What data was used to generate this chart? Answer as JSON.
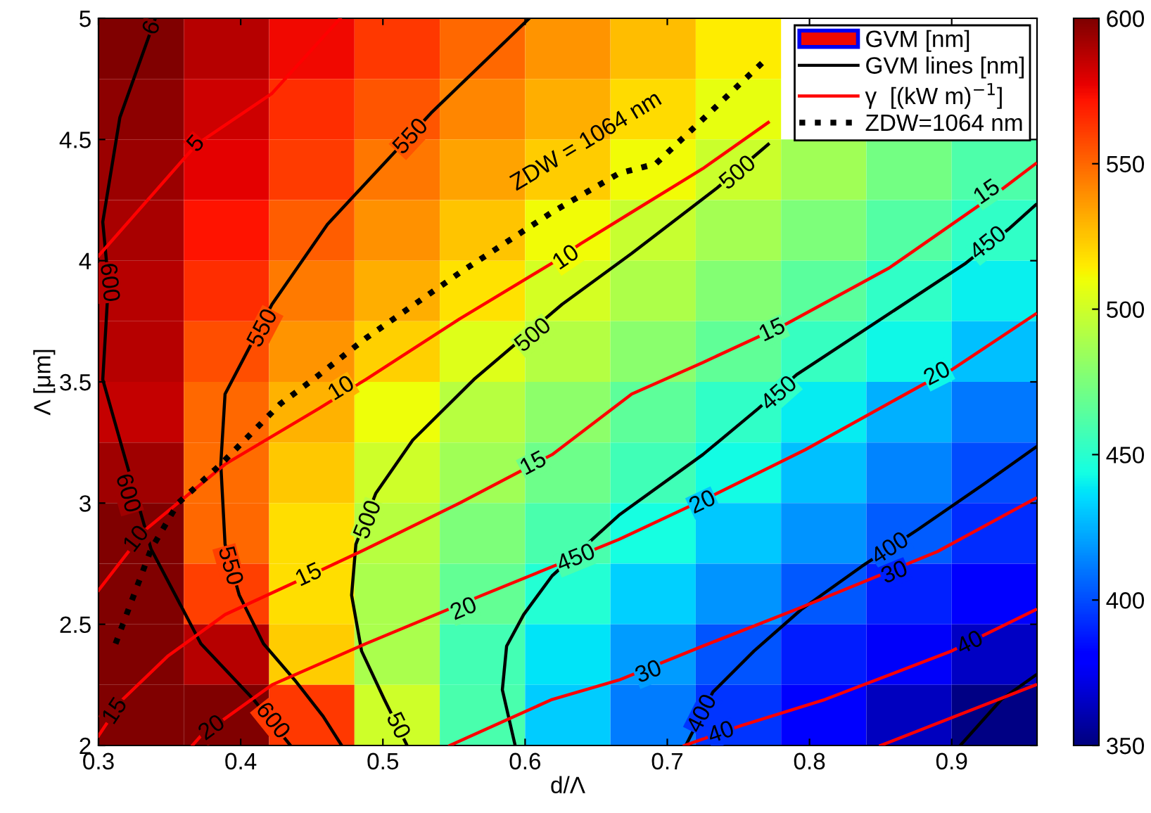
{
  "chart_data": {
    "type": "heatmap",
    "xlabel": "d/Λ",
    "ylabel": "Λ [μm]",
    "xlim": [
      0.3,
      0.96
    ],
    "ylim": [
      2,
      5
    ],
    "xticks": [
      0.3,
      0.4,
      0.5,
      0.6,
      0.7,
      0.8,
      0.9
    ],
    "yticks": [
      2,
      2.5,
      3,
      3.5,
      4,
      4.5,
      5
    ],
    "clim": [
      350,
      600
    ],
    "cticks": [
      350,
      400,
      450,
      500,
      550,
      600
    ],
    "legend": "top right",
    "cells": [
      [
        600,
        587.5,
        575,
        562.5,
        550,
        538,
        527,
        515,
        null,
        null,
        null
      ],
      [
        597,
        583,
        565,
        555,
        542,
        531,
        519,
        508,
        null,
        null,
        null
      ],
      [
        594,
        578,
        561,
        546,
        534,
        523,
        511,
        499,
        486,
        473,
        461
      ],
      [
        591,
        572,
        553,
        539,
        525,
        511,
        498,
        487,
        475,
        463,
        452
      ],
      [
        588,
        565,
        545,
        531,
        517,
        502,
        490,
        477,
        465,
        452,
        440
      ],
      [
        588,
        557,
        538,
        522,
        505,
        492,
        479,
        467,
        454,
        442,
        429
      ],
      [
        585,
        550,
        530,
        510,
        493,
        480,
        466,
        452,
        439,
        425,
        411
      ],
      [
        593,
        549,
        524,
        500,
        486,
        471,
        457,
        443,
        429,
        414,
        400
      ],
      [
        600,
        550,
        518,
        493,
        475,
        460,
        444,
        431,
        418,
        404,
        392
      ],
      [
        600,
        560,
        518,
        489,
        468,
        448,
        433,
        418,
        403,
        390,
        378
      ],
      [
        600,
        588,
        523,
        489,
        458,
        437,
        420,
        402,
        389,
        377,
        365
      ],
      [
        600,
        600,
        562,
        500,
        460,
        432,
        412,
        394,
        379,
        364,
        351
      ]
    ],
    "series": [
      {
        "name": "GVM [nm]",
        "type": "heatmap"
      },
      {
        "name": "GVM lines [nm]",
        "type": "line",
        "color": "#000000",
        "x": [
          0.34,
          0.315,
          0.303,
          0.307,
          0.303,
          0.317,
          0.337,
          0.372,
          0.409,
          0.435,
          null,
          0.603,
          0.534,
          0.461,
          0.422,
          0.389,
          0.386,
          0.389,
          0.399,
          0.416,
          0.438,
          0.458,
          0.471,
          null,
          0.771,
          0.735,
          0.675,
          0.626,
          0.564,
          0.521,
          0.495,
          0.481,
          0.478,
          0.485,
          0.501,
          0.517,
          null,
          0.959,
          0.94,
          0.91,
          0.791,
          0.764,
          0.725,
          0.666,
          0.619,
          0.599,
          0.587,
          0.584,
          0.593,
          null,
          0.959,
          0.923,
          0.876,
          0.837,
          0.794,
          0.761,
          0.732,
          0.713,
          null,
          0.959,
          0.935,
          0.906
        ],
        "values": [
          5.0,
          4.59,
          4.16,
          3.91,
          3.51,
          3.22,
          2.81,
          2.42,
          2.19,
          2.0,
          null,
          5.0,
          4.61,
          4.15,
          3.82,
          3.45,
          3.16,
          2.83,
          2.62,
          2.42,
          2.27,
          2.12,
          2.0,
          null,
          4.48,
          4.3,
          4.03,
          3.82,
          3.51,
          3.26,
          3.04,
          2.83,
          2.62,
          2.39,
          2.19,
          2.0,
          null,
          4.23,
          4.13,
          3.99,
          3.53,
          3.39,
          3.2,
          2.95,
          2.7,
          2.54,
          2.41,
          2.23,
          2.0,
          null,
          3.23,
          3.08,
          2.89,
          2.74,
          2.56,
          2.39,
          2.22,
          2.0,
          null,
          2.29,
          2.19,
          2.0
        ]
      },
      {
        "name": "γ  [(kW m)$^{−1}$]",
        "type": "line",
        "color": "#ff0000",
        "x": [
          0.3,
          0.369,
          0.422,
          0.47,
          null,
          0.771,
          0.725,
          0.675,
          0.639,
          0.619,
          0.554,
          0.488,
          0.455,
          0.389,
          0.333,
          0.3,
          null,
          0.959,
          0.932,
          0.856,
          0.784,
          0.725,
          0.675,
          0.619,
          0.554,
          0.488,
          0.448,
          0.389,
          0.349,
          0.317,
          0.3,
          null,
          0.959,
          0.9,
          0.88,
          0.797,
          0.735,
          0.666,
          0.57,
          0.488,
          0.422,
          0.372,
          0.366,
          null,
          0.959,
          0.89,
          0.79,
          0.725,
          0.666,
          0.619,
          0.547,
          null,
          0.959,
          0.9,
          0.811,
          0.751,
          0.712,
          null,
          0.959,
          0.85
        ],
        "values": [
          4.02,
          4.48,
          4.69,
          5.0,
          null,
          4.57,
          4.38,
          4.2,
          4.07,
          3.99,
          3.76,
          3.51,
          3.39,
          3.16,
          2.89,
          2.64,
          null,
          4.4,
          4.28,
          3.97,
          3.74,
          3.58,
          3.45,
          3.2,
          3.0,
          2.81,
          2.7,
          2.54,
          2.37,
          2.19,
          2.04,
          null,
          3.78,
          3.55,
          3.49,
          3.22,
          3.04,
          2.85,
          2.62,
          2.42,
          2.25,
          2.04,
          2.0,
          null,
          3.02,
          2.8,
          2.56,
          2.41,
          2.27,
          2.19,
          2.0,
          null,
          2.56,
          2.39,
          2.19,
          2.08,
          2.0,
          null,
          2.25,
          2.0
        ]
      },
      {
        "name": "ZDW=1064 nm",
        "type": "line",
        "color": "#000000",
        "line_style": "dotted",
        "x": [
          0.312,
          0.337,
          0.356,
          0.386,
          0.428,
          0.451,
          0.488,
          0.554,
          0.619,
          0.666,
          0.692,
          0.771
        ],
        "values": [
          2.42,
          2.81,
          3.0,
          3.16,
          3.41,
          3.51,
          3.68,
          3.95,
          4.2,
          4.36,
          4.4,
          4.84
        ]
      }
    ],
    "annotations": [
      {
        "text": "6",
        "x": 0.338,
        "y": 4.96
      },
      {
        "text": "600",
        "x": 0.307,
        "y": 3.91
      },
      {
        "text": "600",
        "x": 0.32,
        "y": 3.04
      },
      {
        "text": "600",
        "x": 0.422,
        "y": 2.1
      },
      {
        "text": "550",
        "x": 0.52,
        "y": 4.51
      },
      {
        "text": "550",
        "x": 0.416,
        "y": 3.72
      },
      {
        "text": "550",
        "x": 0.392,
        "y": 2.74
      },
      {
        "text": "500",
        "x": 0.75,
        "y": 4.36
      },
      {
        "text": "500",
        "x": 0.606,
        "y": 3.69
      },
      {
        "text": "500",
        "x": 0.49,
        "y": 2.93
      },
      {
        "text": "50",
        "x": 0.51,
        "y": 2.08
      },
      {
        "text": "450",
        "x": 0.926,
        "y": 4.07
      },
      {
        "text": "450",
        "x": 0.779,
        "y": 3.45
      },
      {
        "text": "450",
        "x": 0.636,
        "y": 2.77
      },
      {
        "text": "400",
        "x": 0.857,
        "y": 2.81
      },
      {
        "text": "400",
        "x": 0.725,
        "y": 2.13
      },
      {
        "text": "5",
        "x": 0.369,
        "y": 4.48
      },
      {
        "text": "10",
        "x": 0.629,
        "y": 4.01
      },
      {
        "text": "10",
        "x": 0.471,
        "y": 3.47
      },
      {
        "text": "10",
        "x": 0.327,
        "y": 2.85
      },
      {
        "text": "15",
        "x": 0.925,
        "y": 4.28
      },
      {
        "text": "15",
        "x": 0.774,
        "y": 3.71
      },
      {
        "text": "15",
        "x": 0.606,
        "y": 3.16
      },
      {
        "text": "15",
        "x": 0.448,
        "y": 2.7
      },
      {
        "text": "15",
        "x": 0.312,
        "y": 2.14
      },
      {
        "text": "20",
        "x": 0.89,
        "y": 3.53
      },
      {
        "text": "20",
        "x": 0.725,
        "y": 3.0
      },
      {
        "text": "20",
        "x": 0.557,
        "y": 2.56
      },
      {
        "text": "20",
        "x": 0.38,
        "y": 2.07
      },
      {
        "text": "30",
        "x": 0.86,
        "y": 2.71
      },
      {
        "text": "30",
        "x": 0.687,
        "y": 2.3
      },
      {
        "text": "40",
        "x": 0.913,
        "y": 2.42
      },
      {
        "text": "40",
        "x": 0.738,
        "y": 2.05
      },
      "ZDW = 1064 nm"
    ]
  }
}
